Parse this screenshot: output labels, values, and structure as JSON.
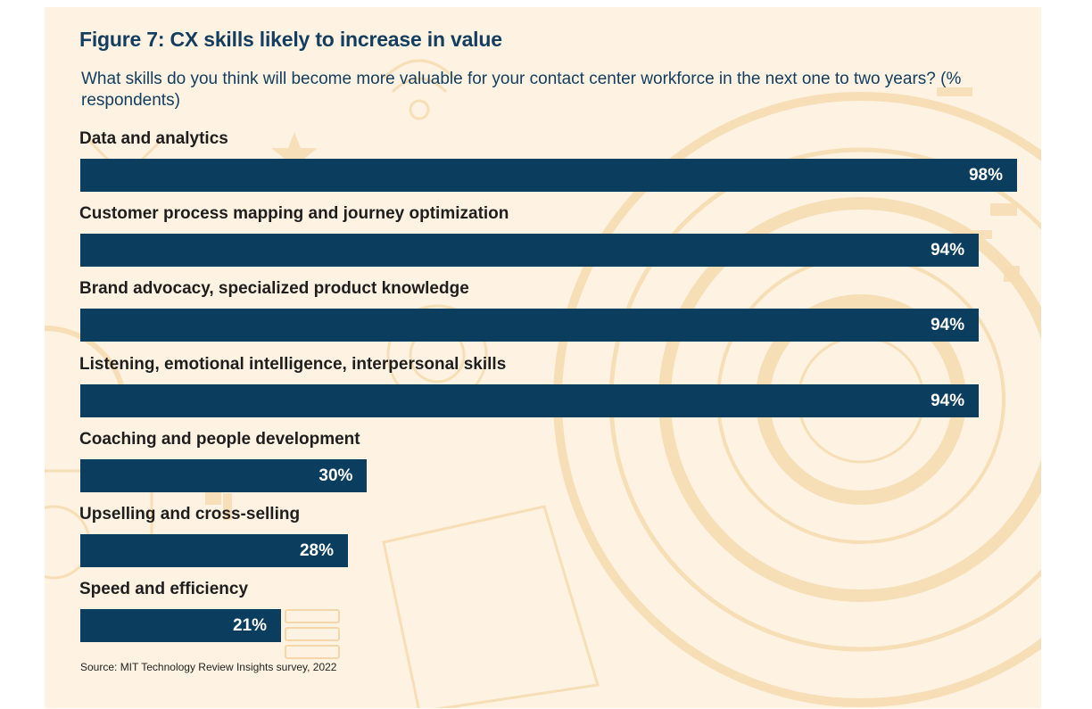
{
  "chart_data": {
    "type": "bar",
    "orientation": "horizontal",
    "title": "Figure 7: CX skills likely to increase in value",
    "subtitle": "What skills do you think will become more valuable for your contact center workforce in the next one to two years? (% respondents)",
    "categories": [
      "Data and analytics",
      "Customer process mapping and journey optimization",
      "Brand advocacy, specialized product knowledge",
      "Listening, emotional intelligence, interpersonal skills",
      "Coaching and people development",
      "Upselling and cross-selling",
      "Speed and efficiency"
    ],
    "values": [
      98,
      94,
      94,
      94,
      30,
      28,
      21
    ],
    "value_labels": [
      "98%",
      "94%",
      "94%",
      "94%",
      "30%",
      "28%",
      "21%"
    ],
    "xlim": [
      0,
      98
    ],
    "grid": false,
    "legend": "none",
    "source": "Source: MIT Technology Review Insights survey, 2022"
  },
  "colors": {
    "background": "#fef3e2",
    "bar": "#0b3d5e",
    "title": "#133e60",
    "label": "#1e1e1e",
    "decoration": "#f6dcb2"
  }
}
